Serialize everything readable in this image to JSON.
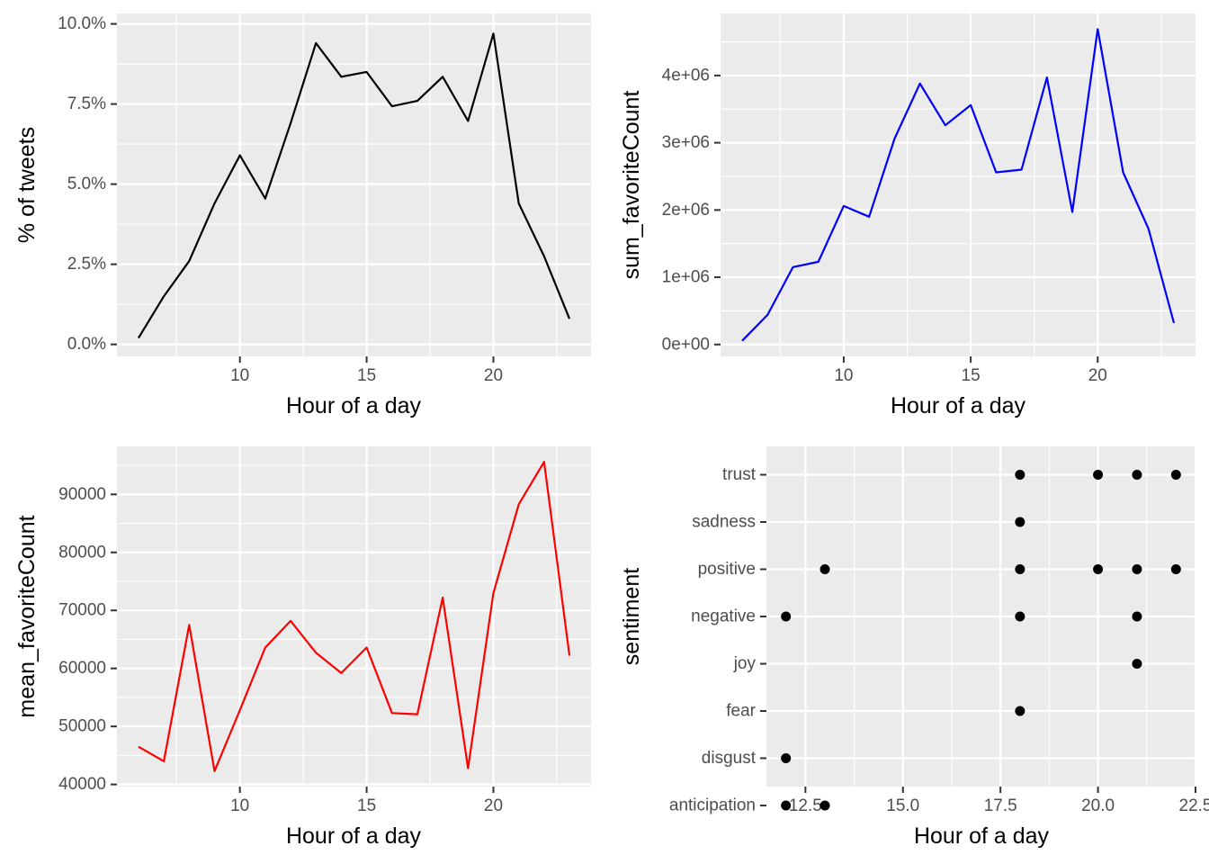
{
  "chart_data": [
    {
      "type": "line",
      "xlabel": "Hour of a day",
      "ylabel": "% of tweets",
      "x": [
        6,
        7,
        8,
        9,
        10,
        11,
        12,
        13,
        14,
        15,
        16,
        17,
        18,
        19,
        20,
        21,
        22,
        23
      ],
      "series": [
        {
          "color": "#000000",
          "values": [
            0.2,
            1.5,
            2.6,
            4.4,
            5.9,
            4.55,
            6.9,
            9.4,
            8.35,
            8.5,
            7.43,
            7.6,
            8.35,
            6.97,
            9.7,
            4.4,
            2.75,
            0.8
          ]
        }
      ],
      "xlim": [
        5.15,
        23.85
      ],
      "ylim": [
        -0.375,
        10.325
      ],
      "xticks": [
        10,
        15,
        20
      ],
      "xtick_labels": [
        "10",
        "15",
        "20"
      ],
      "yticks": [
        0,
        2.5,
        5,
        7.5,
        10
      ],
      "ytick_labels": [
        "0.0%",
        "2.5%",
        "5.0%",
        "7.5%",
        "10.0%"
      ]
    },
    {
      "type": "line",
      "xlabel": "Hour of a day",
      "ylabel": "sum_favoriteCount",
      "x": [
        6,
        7,
        8,
        9,
        10,
        11,
        12,
        13,
        14,
        15,
        16,
        17,
        18,
        19,
        20,
        21,
        22,
        23
      ],
      "series": [
        {
          "color": "#0000ff",
          "values": [
            55000,
            440000,
            1150000,
            1230000,
            2060000,
            1900000,
            3060000,
            3880000,
            3260000,
            3560000,
            2560000,
            2600000,
            3970000,
            1970000,
            4690000,
            2560000,
            1720000,
            320000
          ]
        }
      ],
      "xlim": [
        5.15,
        23.85
      ],
      "ylim": [
        -176750,
        4921750
      ],
      "xticks": [
        10,
        15,
        20
      ],
      "xtick_labels": [
        "10",
        "15",
        "20"
      ],
      "yticks": [
        0,
        1000000,
        2000000,
        3000000,
        4000000
      ],
      "ytick_labels": [
        "0e+00",
        "1e+06",
        "2e+06",
        "3e+06",
        "4e+06"
      ]
    },
    {
      "type": "line",
      "xlabel": "Hour of a day",
      "ylabel": "mean_favoriteCount",
      "x": [
        6,
        7,
        8,
        9,
        10,
        11,
        12,
        13,
        14,
        15,
        16,
        17,
        18,
        19,
        20,
        21,
        22,
        23
      ],
      "series": [
        {
          "color": "#ff0000",
          "values": [
            46500,
            44000,
            67500,
            42300,
            52800,
            63600,
            68200,
            62700,
            59200,
            63600,
            52300,
            52100,
            72200,
            42800,
            73000,
            88300,
            95600,
            62200
          ]
        }
      ],
      "xlim": [
        5.15,
        23.85
      ],
      "ylim": [
        39630,
        98270
      ],
      "xticks": [
        10,
        15,
        20
      ],
      "xtick_labels": [
        "10",
        "15",
        "20"
      ],
      "yticks": [
        40000,
        50000,
        60000,
        70000,
        80000,
        90000
      ],
      "ytick_labels": [
        "40000",
        "50000",
        "60000",
        "70000",
        "80000",
        "90000"
      ]
    },
    {
      "type": "scatter",
      "xlabel": "Hour of a day",
      "ylabel": "sentiment",
      "categories": [
        "anticipation",
        "disgust",
        "fear",
        "joy",
        "negative",
        "positive",
        "sadness",
        "trust"
      ],
      "points": [
        {
          "x": 12,
          "y": "anticipation"
        },
        {
          "x": 13,
          "y": "anticipation"
        },
        {
          "x": 12,
          "y": "disgust"
        },
        {
          "x": 18,
          "y": "fear"
        },
        {
          "x": 21,
          "y": "joy"
        },
        {
          "x": 12,
          "y": "negative"
        },
        {
          "x": 18,
          "y": "negative"
        },
        {
          "x": 21,
          "y": "negative"
        },
        {
          "x": 13,
          "y": "positive"
        },
        {
          "x": 18,
          "y": "positive"
        },
        {
          "x": 20,
          "y": "positive"
        },
        {
          "x": 21,
          "y": "positive"
        },
        {
          "x": 22,
          "y": "positive"
        },
        {
          "x": 18,
          "y": "sadness"
        },
        {
          "x": 18,
          "y": "trust"
        },
        {
          "x": 20,
          "y": "trust"
        },
        {
          "x": 21,
          "y": "trust"
        },
        {
          "x": 22,
          "y": "trust"
        }
      ],
      "color": "#000000",
      "xlim": [
        11.5,
        22.5
      ],
      "xticks": [
        12.5,
        15,
        17.5,
        20,
        22.5
      ],
      "xtick_labels": [
        "12.5",
        "15.0",
        "17.5",
        "20.0",
        "22.5"
      ]
    }
  ]
}
